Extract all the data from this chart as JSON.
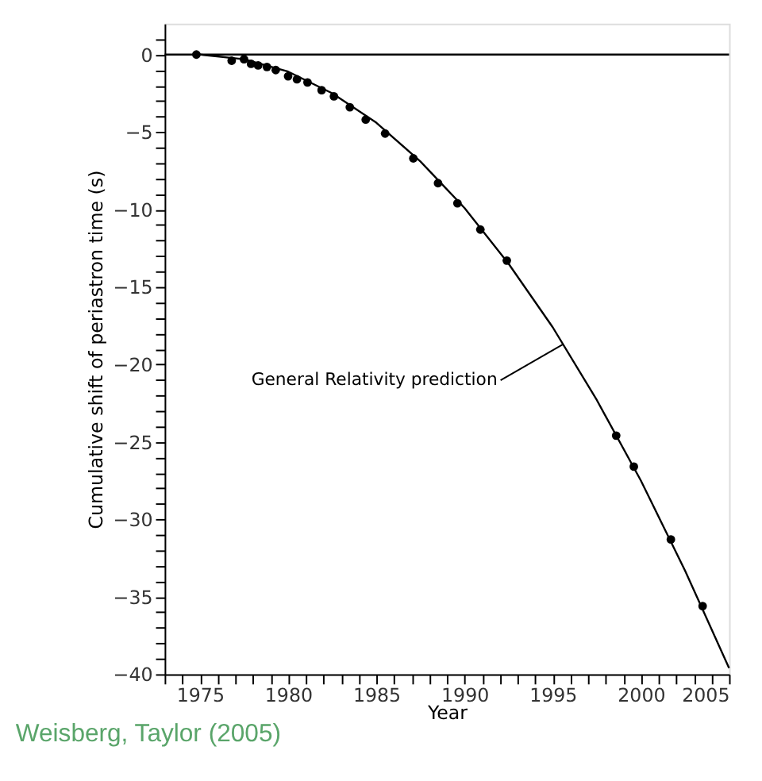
{
  "chart_data": {
    "type": "scatter",
    "xlabel": "Year",
    "ylabel": "Cumulative shift of periastron time (s)",
    "xlim": [
      1973,
      2005
    ],
    "ylim": [
      -40,
      2
    ],
    "xticks": [
      {
        "value": 1973,
        "label": null
      },
      {
        "value": 1974,
        "label": null
      },
      1975,
      {
        "value": 1976,
        "label": null
      },
      {
        "value": 1977,
        "label": null
      },
      {
        "value": 1978,
        "label": null
      },
      {
        "value": 1979,
        "label": null
      },
      1980,
      {
        "value": 1981,
        "label": null
      },
      {
        "value": 1982,
        "label": null
      },
      {
        "value": 1983,
        "label": null
      },
      {
        "value": 1984,
        "label": null
      },
      1985,
      {
        "value": 1986,
        "label": null
      },
      {
        "value": 1987,
        "label": null
      },
      {
        "value": 1988,
        "label": null
      },
      {
        "value": 1989,
        "label": null
      },
      1990,
      {
        "value": 1991,
        "label": null
      },
      {
        "value": 1992,
        "label": null
      },
      {
        "value": 1993,
        "label": null
      },
      {
        "value": 1994,
        "label": null
      },
      1995,
      {
        "value": 1996,
        "label": null
      },
      {
        "value": 1997,
        "label": null
      },
      {
        "value": 1998,
        "label": null
      },
      {
        "value": 1999,
        "label": null
      },
      2000,
      {
        "value": 2001,
        "label": null
      },
      {
        "value": 2002,
        "label": null
      },
      {
        "value": 2003,
        "label": null
      },
      {
        "value": 2004,
        "label": null
      },
      2005
    ],
    "yticks": [
      {
        "value": 1,
        "label": null
      },
      0,
      {
        "value": -1,
        "label": null
      },
      {
        "value": -2,
        "label": null
      },
      {
        "value": -3,
        "label": null
      },
      {
        "value": -4,
        "label": null
      },
      -5,
      {
        "value": -6,
        "label": null
      },
      {
        "value": -7,
        "label": null
      },
      {
        "value": -8,
        "label": null
      },
      {
        "value": -9,
        "label": null
      },
      -10,
      {
        "value": -11,
        "label": null
      },
      {
        "value": -12,
        "label": null
      },
      {
        "value": -13,
        "label": null
      },
      {
        "value": -14,
        "label": null
      },
      -15,
      {
        "value": -16,
        "label": null
      },
      {
        "value": -17,
        "label": null
      },
      {
        "value": -18,
        "label": null
      },
      {
        "value": -19,
        "label": null
      },
      -20,
      {
        "value": -21,
        "label": null
      },
      {
        "value": -22,
        "label": null
      },
      {
        "value": -23,
        "label": null
      },
      {
        "value": -24,
        "label": null
      },
      -25,
      {
        "value": -26,
        "label": null
      },
      {
        "value": -27,
        "label": null
      },
      {
        "value": -28,
        "label": null
      },
      {
        "value": -29,
        "label": null
      },
      -30,
      {
        "value": -31,
        "label": null
      },
      {
        "value": -32,
        "label": null
      },
      {
        "value": -33,
        "label": null
      },
      {
        "value": -34,
        "label": null
      },
      -35,
      {
        "value": -36,
        "label": null
      },
      {
        "value": -37,
        "label": null
      },
      {
        "value": -38,
        "label": null
      },
      {
        "value": -39,
        "label": null
      },
      -40
    ],
    "grid": false,
    "series": [
      {
        "color": "#000000",
        "marker": "circle",
        "x": [
          1974.8,
          1976.8,
          1977.5,
          1977.9,
          1978.3,
          1978.8,
          1979.3,
          1980.0,
          1980.5,
          1981.1,
          1981.9,
          1982.6,
          1983.5,
          1984.4,
          1985.5,
          1987.1,
          1988.5,
          1989.6,
          1990.9,
          1992.4,
          1998.6,
          1999.6,
          2001.7,
          2003.5
        ],
        "values": [
          0,
          -0.4,
          -0.3,
          -0.6,
          -0.7,
          -0.8,
          -1.0,
          -1.4,
          -1.6,
          -1.8,
          -2.3,
          -2.7,
          -3.4,
          -4.2,
          -5.1,
          -6.7,
          -8.3,
          -9.6,
          -11.3,
          -13.3,
          -24.6,
          -26.6,
          -31.3,
          -35.6
        ]
      },
      {
        "type": "line",
        "color": "#000000",
        "line_style": "solid",
        "x": [
          1975,
          1977.5,
          1980,
          1982.5,
          1985,
          1987.5,
          1990,
          1992.5,
          1995,
          1997.5,
          2000,
          2002.5,
          2005
        ],
        "values": [
          0,
          -0.3,
          -1.1,
          -2.5,
          -4.4,
          -6.9,
          -9.9,
          -13.5,
          -17.6,
          -22.3,
          -27.5,
          -33.3,
          -39.6
        ]
      }
    ],
    "ref_lines": [
      {
        "axis": "y",
        "value": 0,
        "color": "#000000"
      }
    ],
    "annotations": [
      {
        "text": "General Relativity prediction",
        "x": 1995.6,
        "y": -18.7
      },
      "Weisberg, Taylor (2005)"
    ]
  }
}
